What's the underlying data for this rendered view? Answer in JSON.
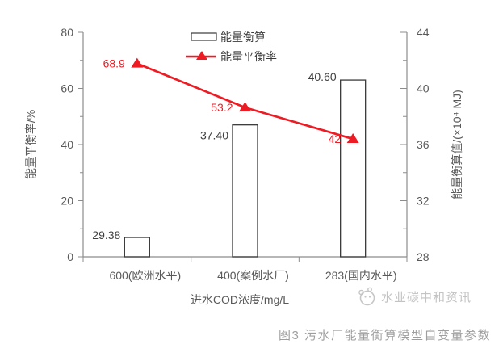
{
  "figure": {
    "caption": "图3 污水厂能量衡算模型自变量参数",
    "watermark_text": "水业碳中和资讯"
  },
  "chart_data": {
    "type": "bar+line",
    "categories": [
      "600(欧洲水平)",
      "400(案例水厂)",
      "283(国内水平)"
    ],
    "series": [
      {
        "name": "能量衡算",
        "type": "bar",
        "axis": "right",
        "values": [
          29.38,
          37.4,
          40.6
        ],
        "point_labels": [
          "29.38",
          "37.40",
          "40.60"
        ]
      },
      {
        "name": "能量平衡率",
        "type": "line",
        "axis": "left",
        "values": [
          68.9,
          53.2,
          42
        ],
        "point_labels": [
          "68.9",
          "53.2",
          "42"
        ]
      }
    ],
    "axes": {
      "left": {
        "label": "能量平衡率/%",
        "min": 0,
        "max": 80,
        "major_ticks": [
          0,
          20,
          40,
          60,
          80
        ],
        "minor_step": 10
      },
      "right": {
        "label": "能量衡算值/(×10⁴ MJ)",
        "min": 28,
        "max": 44,
        "major_ticks": [
          28,
          32,
          36,
          40,
          44
        ],
        "minor_step": 2
      },
      "x": {
        "label": "进水COD浓度/mg/L"
      }
    },
    "legend": {
      "position": "top-center-inside",
      "items": [
        "能量衡算",
        "能量平衡率"
      ]
    },
    "grid": false,
    "colors": {
      "line_series": "#ed1c24",
      "bar_fill": "none",
      "bar_border": "#3a3a3a",
      "axis": "#8c8c8c",
      "tick_label": "#595959",
      "bar_point_label": "#404040",
      "line_point_label": "#ed1c24",
      "legend_text": "#3a3a3a",
      "caption": "#9e9e9e",
      "watermark": "#c3c3c3"
    }
  }
}
